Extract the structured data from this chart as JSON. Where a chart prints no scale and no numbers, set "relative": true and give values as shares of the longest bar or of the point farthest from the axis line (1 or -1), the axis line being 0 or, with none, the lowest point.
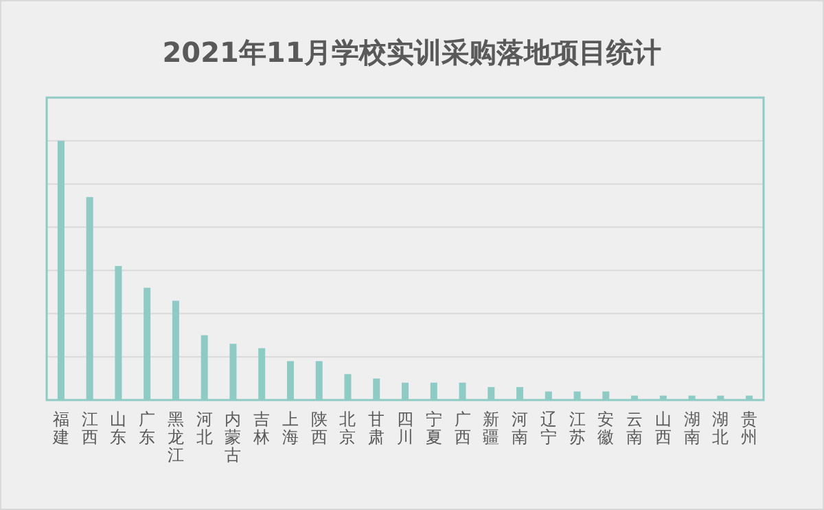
{
  "chart_data": {
    "type": "bar",
    "title": "2021年11月学校实训采购落地项目统计",
    "categories": [
      "福建",
      "江西",
      "山东",
      "广东",
      "黑龙江",
      "河北",
      "内蒙古",
      "吉林",
      "上海",
      "陕西",
      "北京",
      "甘肃",
      "四川",
      "宁夏",
      "广西",
      "新疆",
      "河南",
      "辽宁",
      "江苏",
      "安徽",
      "云南",
      "山西",
      "湖南",
      "湖北",
      "贵州"
    ],
    "values": [
      1,
      0.783,
      0.517,
      0.433,
      0.383,
      0.25,
      0.217,
      0.2,
      0.15,
      0.15,
      0.1,
      0.083,
      0.067,
      0.067,
      0.067,
      0.05,
      0.05,
      0.033,
      0.033,
      0.033,
      0.017,
      0.017,
      0.017,
      0.017,
      0.017
    ],
    "color": "#8ecbc4",
    "relative": true,
    "grid": "y"
  }
}
